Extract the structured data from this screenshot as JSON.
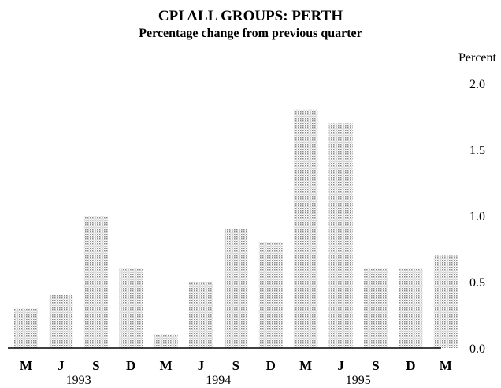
{
  "chart_data": {
    "type": "bar",
    "title": "CPI ALL GROUPS: PERTH",
    "subtitle": "Percentage change from previous quarter",
    "ylabel": "Percent",
    "ylim": [
      0,
      2
    ],
    "yticks": [
      "2.0",
      "1.5",
      "1.0",
      "0.5",
      "0.0"
    ],
    "categories": [
      "M",
      "J",
      "S",
      "D",
      "M",
      "J",
      "S",
      "D",
      "M",
      "J",
      "S",
      "D",
      "M"
    ],
    "year_labels": [
      "1993",
      "1994",
      "1995"
    ],
    "values": [
      0.3,
      0.4,
      1.0,
      0.6,
      0.1,
      0.5,
      0.9,
      0.8,
      1.8,
      1.7,
      0.6,
      0.6,
      0.7
    ],
    "grid": false,
    "bar_color": "#9a9a9a"
  }
}
